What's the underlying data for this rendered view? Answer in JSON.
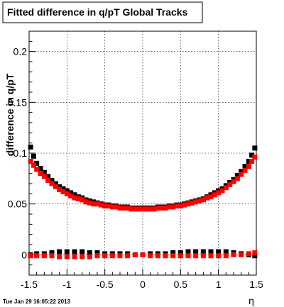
{
  "chart_data": {
    "type": "scatter",
    "title": "Fitted difference in q/pT  Global Tracks",
    "xlabel": "η",
    "ylabel": "difference in q/pT",
    "xlim": [
      -1.5,
      1.5
    ],
    "ylim": [
      -0.02,
      0.22
    ],
    "x_ticks": [
      "-1.5",
      "-1",
      "-0.5",
      "0",
      "0.5",
      "1",
      "1.5"
    ],
    "y_ticks": [
      "0",
      "0.05",
      "0.1",
      "0.15",
      "0.2"
    ],
    "grid": true,
    "marker": "square",
    "series": [
      {
        "color": "#000000",
        "points": [
          [
            -1.48,
            0.106
          ],
          [
            -1.44,
            0.097
          ],
          [
            -1.4,
            0.09
          ],
          [
            -1.35,
            0.085
          ],
          [
            -1.3,
            0.081
          ],
          [
            -1.25,
            0.077
          ],
          [
            -1.2,
            0.073
          ],
          [
            -1.15,
            0.07
          ],
          [
            -1.1,
            0.067
          ],
          [
            -1.05,
            0.065
          ],
          [
            -1.0,
            0.063
          ],
          [
            -0.95,
            0.061
          ],
          [
            -0.9,
            0.059
          ],
          [
            -0.85,
            0.057
          ],
          [
            -0.8,
            0.056
          ],
          [
            -0.75,
            0.054
          ],
          [
            -0.7,
            0.053
          ],
          [
            -0.65,
            0.052
          ],
          [
            -0.6,
            0.051
          ],
          [
            -0.55,
            0.05
          ],
          [
            -0.5,
            0.049
          ],
          [
            -0.45,
            0.049
          ],
          [
            -0.4,
            0.048
          ],
          [
            -0.35,
            0.048
          ],
          [
            -0.3,
            0.047
          ],
          [
            -0.25,
            0.047
          ],
          [
            -0.2,
            0.047
          ],
          [
            -0.15,
            0.046
          ],
          [
            -0.1,
            0.046
          ],
          [
            -0.05,
            0.046
          ],
          [
            0.0,
            0.046
          ],
          [
            0.05,
            0.046
          ],
          [
            0.1,
            0.046
          ],
          [
            0.15,
            0.046
          ],
          [
            0.2,
            0.047
          ],
          [
            0.25,
            0.047
          ],
          [
            0.3,
            0.047
          ],
          [
            0.35,
            0.048
          ],
          [
            0.4,
            0.048
          ],
          [
            0.45,
            0.049
          ],
          [
            0.5,
            0.049
          ],
          [
            0.55,
            0.05
          ],
          [
            0.6,
            0.051
          ],
          [
            0.65,
            0.052
          ],
          [
            0.7,
            0.053
          ],
          [
            0.75,
            0.054
          ],
          [
            0.8,
            0.055
          ],
          [
            0.85,
            0.057
          ],
          [
            0.9,
            0.059
          ],
          [
            0.95,
            0.061
          ],
          [
            1.0,
            0.063
          ],
          [
            1.05,
            0.065
          ],
          [
            1.1,
            0.068
          ],
          [
            1.15,
            0.071
          ],
          [
            1.2,
            0.074
          ],
          [
            1.25,
            0.078
          ],
          [
            1.3,
            0.082
          ],
          [
            1.35,
            0.087
          ],
          [
            1.4,
            0.092
          ],
          [
            1.44,
            0.098
          ],
          [
            1.48,
            0.105
          ],
          [
            -1.48,
            0.0
          ],
          [
            -1.4,
            0.001
          ],
          [
            -1.3,
            0.001
          ],
          [
            -1.2,
            0.002
          ],
          [
            -1.1,
            0.003
          ],
          [
            -1.0,
            0.003
          ],
          [
            -0.9,
            0.003
          ],
          [
            -0.8,
            0.003
          ],
          [
            -0.7,
            0.002
          ],
          [
            -0.6,
            0.002
          ],
          [
            -0.5,
            0.001
          ],
          [
            -0.4,
            0.001
          ],
          [
            -0.3,
            0.001
          ],
          [
            -0.2,
            0.001
          ],
          [
            -0.1,
            0.0
          ],
          [
            0.0,
            0.0
          ],
          [
            0.1,
            0.001
          ],
          [
            0.2,
            0.001
          ],
          [
            0.3,
            0.001
          ],
          [
            0.4,
            0.002
          ],
          [
            0.5,
            0.002
          ],
          [
            0.6,
            0.003
          ],
          [
            0.7,
            0.003
          ],
          [
            0.8,
            0.003
          ],
          [
            0.9,
            0.003
          ],
          [
            1.0,
            0.003
          ],
          [
            1.1,
            0.003
          ],
          [
            1.2,
            0.002
          ],
          [
            1.3,
            0.001
          ],
          [
            1.4,
            0.0
          ],
          [
            1.48,
            -0.001
          ]
        ]
      },
      {
        "color": "#ff0000",
        "points": [
          [
            -1.48,
            0.092
          ],
          [
            -1.44,
            0.088
          ],
          [
            -1.4,
            0.084
          ],
          [
            -1.35,
            0.08
          ],
          [
            -1.3,
            0.077
          ],
          [
            -1.25,
            0.073
          ],
          [
            -1.2,
            0.07
          ],
          [
            -1.15,
            0.067
          ],
          [
            -1.1,
            0.064
          ],
          [
            -1.05,
            0.062
          ],
          [
            -1.0,
            0.06
          ],
          [
            -0.95,
            0.058
          ],
          [
            -0.9,
            0.056
          ],
          [
            -0.85,
            0.055
          ],
          [
            -0.8,
            0.054
          ],
          [
            -0.75,
            0.052
          ],
          [
            -0.7,
            0.051
          ],
          [
            -0.65,
            0.05
          ],
          [
            -0.6,
            0.05
          ],
          [
            -0.55,
            0.049
          ],
          [
            -0.5,
            0.048
          ],
          [
            -0.45,
            0.048
          ],
          [
            -0.4,
            0.047
          ],
          [
            -0.35,
            0.047
          ],
          [
            -0.3,
            0.046
          ],
          [
            -0.25,
            0.046
          ],
          [
            -0.2,
            0.046
          ],
          [
            -0.15,
            0.045
          ],
          [
            -0.1,
            0.045
          ],
          [
            -0.05,
            0.045
          ],
          [
            0.0,
            0.045
          ],
          [
            0.05,
            0.045
          ],
          [
            0.1,
            0.045
          ],
          [
            0.15,
            0.045
          ],
          [
            0.2,
            0.046
          ],
          [
            0.25,
            0.046
          ],
          [
            0.3,
            0.046
          ],
          [
            0.35,
            0.047
          ],
          [
            0.4,
            0.047
          ],
          [
            0.45,
            0.048
          ],
          [
            0.5,
            0.048
          ],
          [
            0.55,
            0.049
          ],
          [
            0.6,
            0.05
          ],
          [
            0.65,
            0.051
          ],
          [
            0.7,
            0.052
          ],
          [
            0.75,
            0.053
          ],
          [
            0.8,
            0.054
          ],
          [
            0.85,
            0.056
          ],
          [
            0.9,
            0.057
          ],
          [
            0.95,
            0.059
          ],
          [
            1.0,
            0.061
          ],
          [
            1.05,
            0.063
          ],
          [
            1.1,
            0.066
          ],
          [
            1.15,
            0.069
          ],
          [
            1.2,
            0.072
          ],
          [
            1.25,
            0.075
          ],
          [
            1.3,
            0.079
          ],
          [
            1.35,
            0.083
          ],
          [
            1.4,
            0.087
          ],
          [
            1.44,
            0.092
          ],
          [
            1.48,
            0.096
          ],
          [
            -1.48,
            -0.001
          ],
          [
            -1.4,
            -0.001
          ],
          [
            -1.3,
            -0.001
          ],
          [
            -1.2,
            -0.001
          ],
          [
            -1.1,
            -0.002
          ],
          [
            -1.0,
            -0.002
          ],
          [
            -0.9,
            -0.002
          ],
          [
            -0.8,
            -0.002
          ],
          [
            -0.7,
            -0.002
          ],
          [
            -0.6,
            -0.001
          ],
          [
            -0.5,
            -0.001
          ],
          [
            -0.4,
            -0.001
          ],
          [
            -0.3,
            -0.001
          ],
          [
            -0.2,
            -0.001
          ],
          [
            -0.1,
            0.0
          ],
          [
            0.0,
            0.0
          ],
          [
            0.1,
            -0.001
          ],
          [
            0.2,
            -0.001
          ],
          [
            0.3,
            -0.001
          ],
          [
            0.4,
            -0.001
          ],
          [
            0.5,
            -0.001
          ],
          [
            0.6,
            -0.001
          ],
          [
            0.7,
            -0.001
          ],
          [
            0.8,
            -0.001
          ],
          [
            0.9,
            -0.001
          ],
          [
            1.0,
            -0.001
          ],
          [
            1.1,
            -0.001
          ],
          [
            1.2,
            0.0
          ],
          [
            1.3,
            0.0
          ],
          [
            1.4,
            0.001
          ],
          [
            1.48,
            0.002
          ]
        ]
      }
    ]
  },
  "timestamp": "Tue Jan 29 16:05:22 2013"
}
